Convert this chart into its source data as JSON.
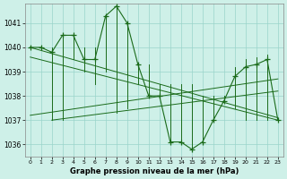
{
  "hours": [
    0,
    1,
    2,
    3,
    4,
    5,
    6,
    7,
    8,
    9,
    10,
    11,
    12,
    13,
    14,
    15,
    16,
    17,
    18,
    19,
    20,
    21,
    22,
    23
  ],
  "main_line": [
    1040.0,
    1040.0,
    1039.8,
    1040.5,
    1040.5,
    1039.5,
    1039.5,
    1041.3,
    1041.7,
    1041.0,
    1039.3,
    1038.0,
    1038.0,
    1036.1,
    1036.1,
    1035.8,
    1036.1,
    1037.0,
    1037.8,
    1038.8,
    1039.2,
    1039.3,
    1039.5,
    1037.0
  ],
  "spike_top": [
    1040.0,
    1040.0,
    1040.0,
    1040.5,
    1040.5,
    1040.0,
    1040.0,
    1041.3,
    1041.7,
    1041.0,
    1039.3,
    1039.3,
    1038.5,
    1038.5,
    1038.5,
    1038.5,
    1038.0,
    1038.0,
    1038.0,
    1039.2,
    1039.5,
    1039.6,
    1039.7,
    1037.0
  ],
  "spike_bot": [
    1040.0,
    1040.0,
    1037.0,
    1037.0,
    1039.5,
    1039.0,
    1038.5,
    1039.0,
    1037.3,
    1037.5,
    1038.5,
    1038.0,
    1038.0,
    1036.1,
    1036.1,
    1035.8,
    1036.1,
    1037.0,
    1037.8,
    1037.5,
    1037.0,
    1037.0,
    1037.0,
    1037.0
  ],
  "trend_lines": [
    {
      "x": [
        0,
        23
      ],
      "y": [
        1040.0,
        1037.1
      ]
    },
    {
      "x": [
        0,
        23
      ],
      "y": [
        1039.6,
        1037.0
      ]
    },
    {
      "x": [
        0,
        23
      ],
      "y": [
        1037.2,
        1038.7
      ]
    },
    {
      "x": [
        2,
        23
      ],
      "y": [
        1037.0,
        1038.2
      ]
    }
  ],
  "ylim": [
    1035.5,
    1041.8
  ],
  "yticks": [
    1036,
    1037,
    1038,
    1039,
    1040,
    1041
  ],
  "xtick_labels": [
    "0",
    "1",
    "2",
    "3",
    "4",
    "5",
    "6",
    "7",
    "8",
    "9",
    "10",
    "11",
    "12",
    "13",
    "14",
    "15",
    "16",
    "17",
    "18",
    "19",
    "20",
    "21",
    "22",
    "23"
  ],
  "xlabel": "Graphe pression niveau de la mer (hPa)",
  "line_color": "#1a6b1a",
  "bg_color": "#cef0e8",
  "grid_color": "#9ad4ca",
  "figwidth": 3.2,
  "figheight": 2.0,
  "dpi": 100
}
